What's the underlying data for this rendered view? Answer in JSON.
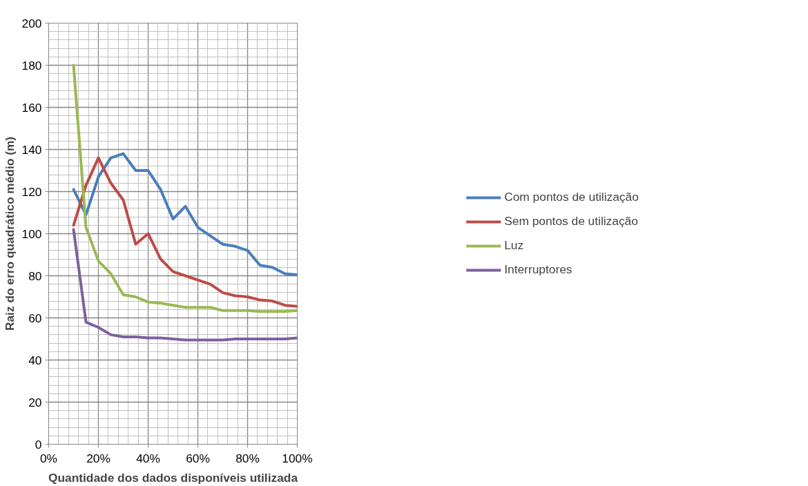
{
  "chart_data": {
    "type": "line",
    "xlabel": "Quantidade dos dados disponíveis utilizada",
    "ylabel": "Raiz do erro quadrático médio (m)",
    "x": [
      10,
      15,
      20,
      25,
      30,
      35,
      40,
      45,
      50,
      55,
      60,
      65,
      70,
      75,
      80,
      85,
      90,
      95,
      100
    ],
    "series": [
      {
        "name": "Com pontos de utilização",
        "color": "#4a7ebb",
        "values": [
          121,
          109,
          127,
          136,
          138,
          130,
          130,
          121,
          107,
          113,
          103,
          99,
          95,
          94,
          92,
          85,
          84,
          81,
          80.5
        ]
      },
      {
        "name": "Sem pontos de utilização",
        "color": "#be4b48",
        "values": [
          104,
          123,
          136,
          124,
          116,
          95,
          100,
          88,
          82,
          80,
          78,
          76,
          72,
          70.5,
          70,
          68.5,
          68,
          66,
          65.5
        ]
      },
      {
        "name": "Luz",
        "color": "#98b954",
        "values": [
          180,
          103,
          87,
          81,
          71,
          70,
          67.5,
          67,
          66,
          65,
          65,
          65,
          63.5,
          63.5,
          63.5,
          63,
          63,
          63,
          63.5
        ]
      },
      {
        "name": "Interruptores",
        "color": "#7d60a0",
        "values": [
          102,
          58,
          55.5,
          52,
          51,
          51,
          50.5,
          50.5,
          50,
          49.5,
          49.5,
          49.5,
          49.5,
          50,
          50,
          50,
          50,
          50,
          50.5
        ]
      }
    ],
    "xlim": [
      0,
      100
    ],
    "xticks": [
      {
        "value": 0,
        "label": "0%"
      },
      {
        "value": 20,
        "label": "20%"
      },
      {
        "value": 40,
        "label": "40%"
      },
      {
        "value": 60,
        "label": "60%"
      },
      {
        "value": 80,
        "label": "80%"
      },
      {
        "value": 100,
        "label": "100%"
      }
    ],
    "ylim": [
      0,
      200
    ],
    "yticks": [
      0,
      20,
      40,
      60,
      80,
      100,
      120,
      140,
      160,
      180,
      200
    ],
    "grid": true,
    "legend": "right",
    "marker": "none",
    "line_style": "solid"
  }
}
